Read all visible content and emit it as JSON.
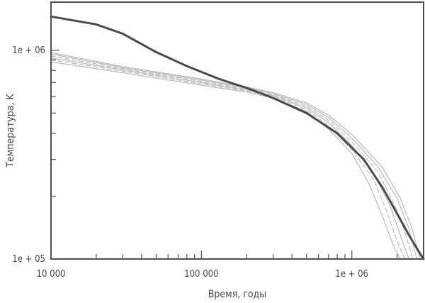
{
  "chart_data": {
    "type": "line",
    "title": "",
    "xlabel": "Время, годы",
    "ylabel": "Температура, K",
    "xscale": "log",
    "yscale": "log",
    "xlim": [
      10000,
      3000000
    ],
    "ylim": [
      100000,
      1700000
    ],
    "grid": false,
    "legend": "none",
    "x_ticks": [
      {
        "value": 10000,
        "label": "10 000"
      },
      {
        "value": 100000,
        "label": "100 000"
      },
      {
        "value": 1000000,
        "label": "1e + 06"
      }
    ],
    "y_ticks": [
      {
        "value": 100000,
        "label": "1e + 05"
      },
      {
        "value": 1000000,
        "label": "1e + 06"
      }
    ],
    "colors": {
      "highlight": "#4a4a4a",
      "models": "#b8b8b8",
      "frame": "#505050"
    },
    "series": [
      {
        "style": "thick-dark",
        "x": [
          10000,
          20000,
          30000,
          50000,
          80000,
          130000,
          200000,
          300000,
          500000,
          800000,
          1200000,
          1600000,
          2000000,
          2400000,
          2800000,
          3000000
        ],
        "y": [
          1450000,
          1330000,
          1200000,
          980000,
          840000,
          730000,
          660000,
          590000,
          500000,
          400000,
          300000,
          220000,
          165000,
          130000,
          108000,
          100000
        ]
      },
      {
        "style": "solid-light",
        "x": [
          10000,
          30000,
          100000,
          200000,
          300000,
          500000,
          700000,
          1000000,
          1300000,
          1600000,
          1900000,
          2100000
        ],
        "y": [
          880000,
          780000,
          680000,
          630000,
          590000,
          510000,
          420000,
          320000,
          230000,
          160000,
          115000,
          100000
        ]
      },
      {
        "style": "dashed-light",
        "x": [
          10000,
          30000,
          100000,
          200000,
          300000,
          500000,
          700000,
          1000000,
          1400000,
          1700000,
          2000000,
          2250000
        ],
        "y": [
          900000,
          795000,
          690000,
          638000,
          598000,
          520000,
          435000,
          335000,
          240000,
          170000,
          122000,
          100000
        ]
      },
      {
        "style": "solid-light",
        "x": [
          10000,
          30000,
          100000,
          200000,
          300000,
          500000,
          700000,
          1000000,
          1400000,
          1800000,
          2100000,
          2400000
        ],
        "y": [
          920000,
          805000,
          700000,
          645000,
          605000,
          530000,
          450000,
          350000,
          255000,
          180000,
          130000,
          100000
        ]
      },
      {
        "style": "dashed-light",
        "x": [
          10000,
          30000,
          100000,
          200000,
          300000,
          500000,
          700000,
          1000000,
          1500000,
          1900000,
          2250000,
          2550000
        ],
        "y": [
          940000,
          815000,
          710000,
          652000,
          612000,
          540000,
          462000,
          365000,
          260000,
          185000,
          135000,
          100000
        ]
      },
      {
        "style": "solid-light",
        "x": [
          10000,
          30000,
          100000,
          200000,
          300000,
          500000,
          700000,
          1000000,
          1500000,
          2000000,
          2400000,
          2700000
        ],
        "y": [
          960000,
          825000,
          720000,
          660000,
          620000,
          550000,
          475000,
          380000,
          275000,
          195000,
          140000,
          100000
        ]
      },
      {
        "style": "solid-light",
        "x": [
          10000,
          30000,
          100000,
          200000,
          300000,
          500000,
          700000,
          1000000,
          1600000,
          2100000,
          2500000,
          2850000
        ],
        "y": [
          975000,
          835000,
          728000,
          666000,
          627000,
          560000,
          488000,
          395000,
          275000,
          195000,
          142000,
          100000
        ]
      }
    ]
  }
}
